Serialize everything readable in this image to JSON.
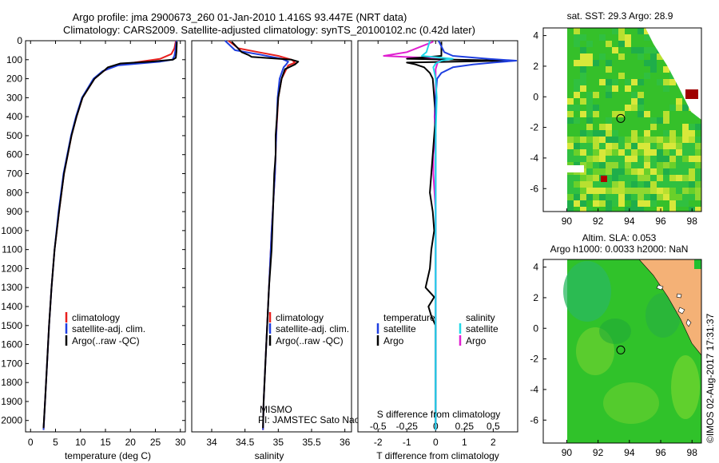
{
  "header": {
    "line1": "Argo profile: jma 2900673_260 01-Jan-2010 1.416S 93.447E (NRT data)",
    "line2": "Climatology: CARS2009. Satellite-adjusted climatology: synTS_20100102.nc (0.42d later)"
  },
  "colors": {
    "climatology": "#e8201e",
    "satellite": "#1f3fe0",
    "argo": "#000000",
    "s_satellite": "#22d8e8",
    "s_argo": "#e020d0"
  },
  "chart_data": [
    {
      "type": "line",
      "xlabel": "temperature (deg C)",
      "ylabel": "",
      "xlim": [
        -1,
        31
      ],
      "ylim": [
        2060,
        0
      ],
      "xticks": [
        "0",
        "5",
        "10",
        "15",
        "20",
        "25",
        "30"
      ],
      "yticks": [
        "0",
        "100",
        "200",
        "300",
        "400",
        "500",
        "600",
        "700",
        "800",
        "900",
        "1000",
        "1100",
        "1200",
        "1300",
        "1400",
        "1500",
        "1600",
        "1700",
        "1800",
        "1900",
        "2000"
      ],
      "legend": [
        "climatology",
        "satellite-adj. clim.",
        "Argo(..raw -QC)"
      ],
      "series": [
        {
          "name": "climatology",
          "depth": [
            0,
            40,
            70,
            95,
            110,
            130,
            160,
            200,
            300,
            400,
            500,
            700,
            900,
            1100,
            1300,
            1500,
            1700,
            1900,
            2050
          ],
          "values": [
            29.1,
            28.8,
            28.2,
            26,
            22,
            17,
            14.6,
            12.8,
            10.4,
            9.2,
            8.2,
            6.7,
            5.7,
            4.8,
            4.2,
            3.7,
            3.3,
            2.9,
            2.6
          ]
        },
        {
          "name": "satellite-adj. clim.",
          "depth": [
            0,
            50,
            80,
            100,
            110,
            130,
            160,
            200,
            300,
            400,
            500,
            700,
            900,
            1100,
            1300,
            1500,
            1700,
            1900,
            2050
          ],
          "values": [
            29.2,
            29,
            28.8,
            28.4,
            26,
            17.5,
            14.4,
            12.6,
            10.3,
            9.1,
            8.1,
            6.6,
            5.6,
            4.8,
            4.2,
            3.7,
            3.3,
            2.9,
            2.6
          ]
        },
        {
          "name": "Argo(..raw -QC)",
          "depth": [
            5,
            60,
            90,
            100,
            110,
            120,
            140,
            170,
            200,
            300,
            400,
            500,
            700,
            900,
            1100,
            1300,
            1500,
            1700,
            1900,
            2040
          ],
          "values": [
            29.3,
            29.2,
            29.1,
            28.5,
            24,
            18,
            15.5,
            14.2,
            12.8,
            10.4,
            9.2,
            8.2,
            6.7,
            5.7,
            4.8,
            4.2,
            3.7,
            3.3,
            2.9,
            2.6
          ]
        }
      ]
    },
    {
      "type": "line",
      "xlabel": "salinity",
      "xlim": [
        33.7,
        36.1
      ],
      "ylim": [
        2060,
        0
      ],
      "xticks": [
        "34",
        "34.5",
        "35",
        "35.5",
        "36"
      ],
      "legend": [
        "climatology",
        "satellite-adj. clim.",
        "Argo(..raw -QC)"
      ],
      "annotation": [
        "MISMO",
        "PI: JAMSTEC Sato Naoki"
      ],
      "series": [
        {
          "name": "climatology",
          "depth": [
            0,
            40,
            60,
            80,
            100,
            115,
            130,
            200,
            300,
            500,
            700,
            1000,
            1300,
            1600,
            1900,
            2050
          ],
          "values": [
            34.25,
            34.4,
            34.7,
            35.0,
            35.2,
            35.25,
            35.15,
            35.05,
            35.0,
            34.97,
            34.95,
            34.9,
            34.86,
            34.82,
            34.78,
            34.77
          ]
        },
        {
          "name": "satellite-adj. clim.",
          "depth": [
            0,
            50,
            75,
            95,
            110,
            125,
            140,
            200,
            300,
            500,
            700,
            1000,
            1300,
            1600,
            1900,
            2050
          ],
          "values": [
            34.2,
            34.35,
            34.75,
            35.05,
            35.15,
            35.12,
            35.08,
            35.02,
            34.99,
            34.97,
            34.95,
            34.9,
            34.86,
            34.82,
            34.78,
            34.77
          ]
        },
        {
          "name": "Argo(..raw -QC)",
          "depth": [
            5,
            60,
            75,
            85,
            100,
            110,
            125,
            150,
            200,
            300,
            400,
            500,
            600,
            650,
            700,
            900,
            1100,
            1300,
            1600,
            1900,
            2040
          ],
          "values": [
            34.3,
            34.45,
            34.55,
            34.6,
            35.2,
            35.3,
            35.25,
            35.1,
            35.05,
            35.0,
            34.98,
            34.96,
            34.96,
            34.95,
            34.94,
            34.92,
            34.9,
            34.86,
            34.82,
            34.78,
            34.77
          ]
        }
      ]
    },
    {
      "type": "line",
      "xlabel": "T difference from climatology",
      "xlabel2": "S difference from climatology",
      "xlim": [
        -2.7,
        2.85
      ],
      "ylim": [
        2060,
        0
      ],
      "xticks": [
        "-2",
        "-1",
        "0",
        "1",
        "2"
      ],
      "sticks": [
        "-0.5",
        "-0.25",
        "0",
        "0.25",
        "0.5"
      ],
      "legend_temperature_title": "temperature",
      "legend_salinity_title": "salinity",
      "legend": {
        "t_satellite": "satellite",
        "t_argo": "Argo",
        "s_satellite": "satellite",
        "s_argo": "Argo"
      },
      "series": [
        {
          "name": "T satellite",
          "depth": [
            0,
            60,
            80,
            95,
            105,
            115,
            125,
            140,
            170,
            200,
            300,
            500,
            800,
            1200,
            1600,
            2050
          ],
          "values": [
            0.1,
            0.3,
            0.6,
            1.8,
            2.8,
            2.0,
            1.3,
            0.6,
            0.2,
            0.05,
            0.0,
            0.0,
            0.0,
            0.0,
            0.0,
            0.0
          ]
        },
        {
          "name": "T Argo",
          "depth": [
            5,
            60,
            80,
            95,
            105,
            115,
            125,
            140,
            170,
            200,
            300,
            400,
            500,
            600,
            700,
            800,
            900,
            1000,
            1100,
            1200,
            1300,
            1350,
            1400,
            1450,
            1500,
            1600,
            1800,
            2040
          ],
          "values": [
            0.2,
            0.2,
            0.2,
            -1.0,
            2.5,
            -1.0,
            -0.7,
            -0.4,
            -0.2,
            -0.1,
            -0.05,
            0.0,
            -0.05,
            -0.1,
            -0.15,
            -0.2,
            -0.1,
            -0.05,
            -0.15,
            -0.2,
            -0.35,
            -0.05,
            -0.25,
            -0.15,
            0.0,
            0.0,
            0.0,
            0.0
          ]
        },
        {
          "name": "S satellite",
          "depth": [
            0,
            60,
            80,
            95,
            105,
            120,
            140,
            170,
            200,
            300,
            500,
            800,
            1200,
            1600,
            2050
          ],
          "values": [
            -0.05,
            -0.08,
            -0.12,
            0.15,
            0.05,
            0.0,
            -0.02,
            -0.01,
            0.0,
            0.01,
            0.0,
            0.0,
            0.0,
            0.0,
            0.0
          ]
        },
        {
          "name": "S Argo",
          "depth": [
            5,
            60,
            80,
            90,
            100,
            110,
            130,
            150,
            200,
            300,
            400,
            500,
            600,
            700,
            800,
            900,
            1000,
            1100,
            1200,
            1400,
            1600,
            1800,
            2040
          ],
          "values": [
            -0.02,
            -0.25,
            -0.45,
            -0.1,
            0.05,
            0.02,
            0.01,
            0.0,
            0.0,
            0.0,
            -0.01,
            0.0,
            -0.02,
            -0.02,
            -0.01,
            0.0,
            0.0,
            0.0,
            0.0,
            0.0,
            0.0,
            0.0,
            0.0
          ]
        }
      ]
    },
    {
      "type": "heatmap",
      "title": "sat. SST: 29.3 Argo: 28.9",
      "xlim": [
        88.5,
        98.6
      ],
      "ylim": [
        -7.5,
        4.5
      ],
      "xticks": [
        "90",
        "92",
        "94",
        "96",
        "98"
      ],
      "yticks": [
        "4",
        "2",
        "0",
        "-2",
        "-4",
        "-6"
      ],
      "marker": {
        "lon": 93.447,
        "lat": -1.416
      }
    },
    {
      "type": "heatmap",
      "title_line1": "Altim. SLA: 0.053",
      "title_line2": "Argo h1000: 0.0033 h2000: NaN",
      "xlim": [
        88.5,
        98.6
      ],
      "ylim": [
        -7.5,
        4.5
      ],
      "xticks": [
        "90",
        "92",
        "94",
        "96",
        "98"
      ],
      "yticks": [
        "4",
        "2",
        "0",
        "-2",
        "-4",
        "-6"
      ],
      "marker": {
        "lon": 93.447,
        "lat": -1.416
      }
    }
  ],
  "footer_side": "©IMOS 02-Aug-2017 17:31:37"
}
